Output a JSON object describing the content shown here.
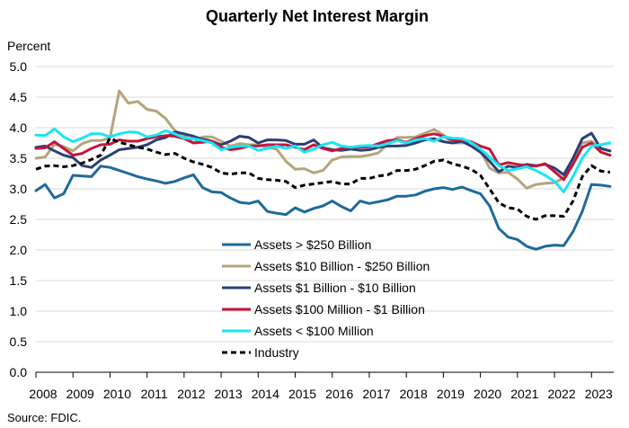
{
  "chart_data": {
    "type": "line",
    "title": "Quarterly Net Interest Margin",
    "ylabel": "Percent",
    "xlabel": "",
    "source": "Source: FDIC.",
    "ylim": [
      0.0,
      5.0
    ],
    "xlim": [
      2008.0,
      2023.6
    ],
    "yticks": [
      "0.0",
      "0.5",
      "1.0",
      "1.5",
      "2.0",
      "2.5",
      "3.0",
      "3.5",
      "4.0",
      "4.5",
      "5.0"
    ],
    "xticks": [
      "2008",
      "2009",
      "2010",
      "2011",
      "2012",
      "2013",
      "2014",
      "2015",
      "2016",
      "2017",
      "2018",
      "2019",
      "2020",
      "2021",
      "2022",
      "2023"
    ],
    "legend_position": "bottom-center",
    "x": [
      2008.0,
      2008.25,
      2008.5,
      2008.75,
      2009.0,
      2009.25,
      2009.5,
      2009.75,
      2010.0,
      2010.25,
      2010.5,
      2010.75,
      2011.0,
      2011.25,
      2011.5,
      2011.75,
      2012.0,
      2012.25,
      2012.5,
      2012.75,
      2013.0,
      2013.25,
      2013.5,
      2013.75,
      2014.0,
      2014.25,
      2014.5,
      2014.75,
      2015.0,
      2015.25,
      2015.5,
      2015.75,
      2016.0,
      2016.25,
      2016.5,
      2016.75,
      2017.0,
      2017.25,
      2017.5,
      2017.75,
      2018.0,
      2018.25,
      2018.5,
      2018.75,
      2019.0,
      2019.25,
      2019.5,
      2019.75,
      2020.0,
      2020.25,
      2020.5,
      2020.75,
      2021.0,
      2021.25,
      2021.5,
      2021.75,
      2022.0,
      2022.25,
      2022.5,
      2022.75,
      2023.0,
      2023.25,
      2023.5
    ],
    "series": [
      {
        "name": "Assets > $250 Billion",
        "color": "#1f6a9a",
        "dash": "",
        "values": [
          2.97,
          3.07,
          2.85,
          2.92,
          3.22,
          3.21,
          3.2,
          3.37,
          3.35,
          3.3,
          3.25,
          3.2,
          3.16,
          3.13,
          3.09,
          3.12,
          3.18,
          3.23,
          3.02,
          2.95,
          2.94,
          2.85,
          2.78,
          2.76,
          2.8,
          2.63,
          2.6,
          2.58,
          2.69,
          2.62,
          2.68,
          2.72,
          2.8,
          2.71,
          2.64,
          2.8,
          2.76,
          2.79,
          2.82,
          2.88,
          2.88,
          2.9,
          2.96,
          3.0,
          3.02,
          2.99,
          3.03,
          2.97,
          2.92,
          2.72,
          2.35,
          2.21,
          2.17,
          2.06,
          2.01,
          2.06,
          2.08,
          2.07,
          2.3,
          2.63,
          3.07,
          3.06,
          3.04
        ]
      },
      {
        "name": "Assets  $10 Billion - $250 Billion",
        "color": "#b5a47c",
        "dash": "",
        "values": [
          3.5,
          3.52,
          3.73,
          3.69,
          3.62,
          3.74,
          3.79,
          3.79,
          3.83,
          4.6,
          4.4,
          4.43,
          4.3,
          4.27,
          4.15,
          3.95,
          3.88,
          3.75,
          3.85,
          3.85,
          3.78,
          3.7,
          3.74,
          3.72,
          3.72,
          3.68,
          3.65,
          3.45,
          3.32,
          3.33,
          3.26,
          3.3,
          3.47,
          3.52,
          3.53,
          3.53,
          3.55,
          3.59,
          3.74,
          3.84,
          3.84,
          3.85,
          3.91,
          3.97,
          3.88,
          3.75,
          3.75,
          3.77,
          3.63,
          3.34,
          3.26,
          3.27,
          3.16,
          3.01,
          3.07,
          3.09,
          3.1,
          3.18,
          3.45,
          3.75,
          3.78,
          3.65,
          3.62
        ]
      },
      {
        "name": "Assets  $1 Billion - $10 Billion",
        "color": "#2b3f74",
        "dash": "",
        "values": [
          3.68,
          3.7,
          3.62,
          3.55,
          3.51,
          3.38,
          3.35,
          3.47,
          3.55,
          3.64,
          3.66,
          3.68,
          3.72,
          3.8,
          3.84,
          3.93,
          3.9,
          3.86,
          3.81,
          3.78,
          3.72,
          3.78,
          3.86,
          3.84,
          3.75,
          3.8,
          3.8,
          3.79,
          3.73,
          3.73,
          3.8,
          3.67,
          3.64,
          3.63,
          3.65,
          3.63,
          3.64,
          3.68,
          3.7,
          3.7,
          3.71,
          3.75,
          3.8,
          3.82,
          3.77,
          3.75,
          3.78,
          3.7,
          3.6,
          3.45,
          3.28,
          3.37,
          3.35,
          3.4,
          3.38,
          3.4,
          3.34,
          3.23,
          3.5,
          3.82,
          3.91,
          3.66,
          3.62
        ]
      },
      {
        "name": "Assets  $100 Million - $1 Billion",
        "color": "#c4163a",
        "dash": "",
        "values": [
          3.66,
          3.67,
          3.77,
          3.66,
          3.55,
          3.58,
          3.66,
          3.72,
          3.73,
          3.8,
          3.78,
          3.78,
          3.82,
          3.85,
          3.87,
          3.86,
          3.82,
          3.75,
          3.76,
          3.78,
          3.68,
          3.64,
          3.66,
          3.7,
          3.7,
          3.72,
          3.72,
          3.72,
          3.68,
          3.64,
          3.72,
          3.66,
          3.62,
          3.66,
          3.68,
          3.68,
          3.69,
          3.74,
          3.79,
          3.8,
          3.76,
          3.82,
          3.87,
          3.9,
          3.86,
          3.8,
          3.8,
          3.77,
          3.7,
          3.65,
          3.39,
          3.43,
          3.4,
          3.38,
          3.37,
          3.41,
          3.28,
          3.15,
          3.4,
          3.68,
          3.75,
          3.6,
          3.55
        ]
      },
      {
        "name": "Assets < $100 Million",
        "color": "#19e5f5",
        "dash": "",
        "values": [
          3.88,
          3.87,
          3.98,
          3.85,
          3.77,
          3.83,
          3.9,
          3.9,
          3.85,
          3.9,
          3.93,
          3.92,
          3.85,
          3.88,
          3.95,
          3.9,
          3.83,
          3.82,
          3.79,
          3.75,
          3.64,
          3.68,
          3.7,
          3.7,
          3.63,
          3.66,
          3.7,
          3.66,
          3.7,
          3.6,
          3.65,
          3.72,
          3.76,
          3.7,
          3.68,
          3.7,
          3.71,
          3.7,
          3.74,
          3.79,
          3.75,
          3.8,
          3.82,
          3.78,
          3.85,
          3.83,
          3.82,
          3.76,
          3.65,
          3.52,
          3.38,
          3.3,
          3.33,
          3.36,
          3.3,
          3.22,
          3.12,
          2.95,
          3.2,
          3.5,
          3.7,
          3.72,
          3.75
        ]
      },
      {
        "name": "Industry",
        "color": "#000000",
        "dash": "6,4",
        "values": [
          3.32,
          3.37,
          3.38,
          3.36,
          3.38,
          3.42,
          3.48,
          3.55,
          3.83,
          3.76,
          3.72,
          3.68,
          3.65,
          3.6,
          3.56,
          3.58,
          3.5,
          3.44,
          3.4,
          3.35,
          3.26,
          3.24,
          3.26,
          3.26,
          3.17,
          3.15,
          3.14,
          3.12,
          3.02,
          3.06,
          3.08,
          3.1,
          3.12,
          3.08,
          3.08,
          3.17,
          3.17,
          3.21,
          3.23,
          3.3,
          3.3,
          3.32,
          3.38,
          3.45,
          3.47,
          3.41,
          3.37,
          3.32,
          3.22,
          3.0,
          2.77,
          2.69,
          2.67,
          2.55,
          2.5,
          2.56,
          2.56,
          2.55,
          2.8,
          3.2,
          3.38,
          3.29,
          3.27
        ]
      }
    ]
  }
}
